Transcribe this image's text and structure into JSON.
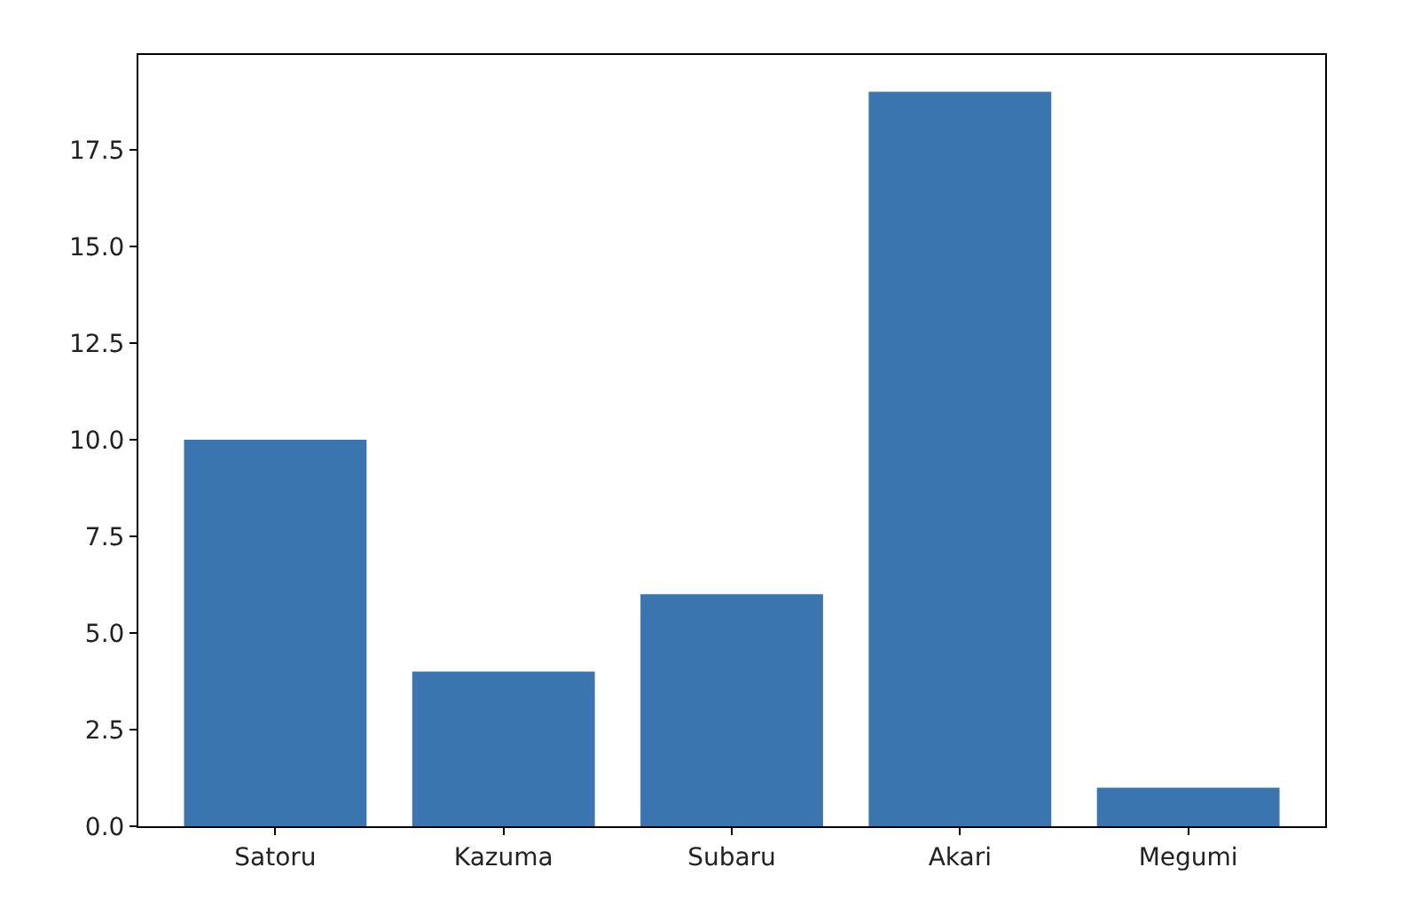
{
  "chart_data": {
    "type": "bar",
    "categories": [
      "Satoru",
      "Kazuma",
      "Subaru",
      "Akari",
      "Megumi"
    ],
    "values": [
      10,
      4,
      6,
      19,
      1
    ],
    "color": "#3a75af",
    "ylim": [
      0,
      19.95
    ],
    "yticks": [
      {
        "value": 0,
        "label": "0.0"
      },
      {
        "value": 2.5,
        "label": "2.5"
      },
      {
        "value": 5,
        "label": "5.0"
      },
      {
        "value": 7.5,
        "label": "7.5"
      },
      {
        "value": 10,
        "label": "10.0"
      },
      {
        "value": 12.5,
        "label": "12.5"
      },
      {
        "value": 15,
        "label": "15.0"
      },
      {
        "value": 17.5,
        "label": "17.5"
      }
    ]
  }
}
